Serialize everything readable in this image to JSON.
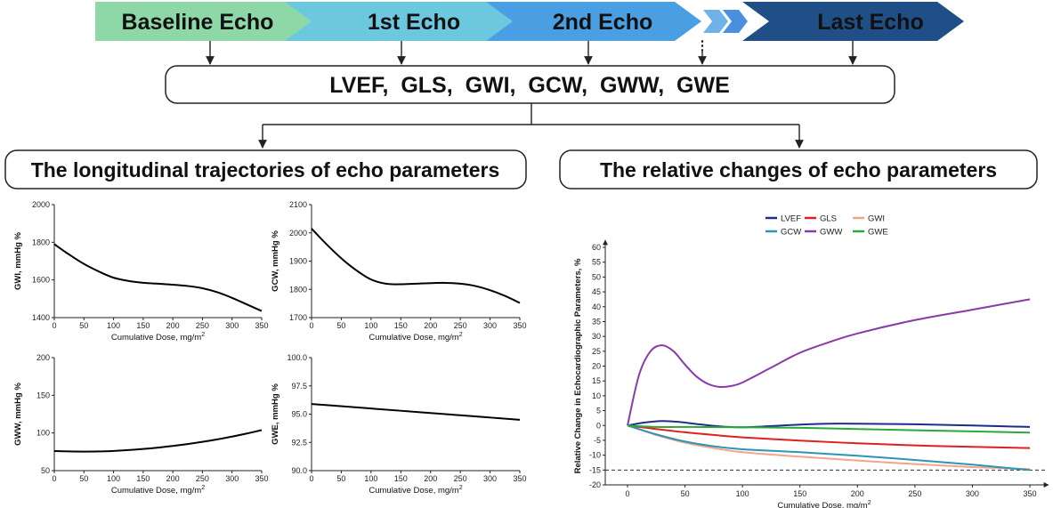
{
  "timeline": {
    "stages": [
      {
        "label": "Baseline Echo",
        "color": "#8ed8a8"
      },
      {
        "label": "1st Echo",
        "color": "#6cc8de"
      },
      {
        "label": "2nd Echo",
        "color": "#4a9fe2"
      },
      {
        "label": "Last Echo",
        "color": "#1f4f86"
      }
    ],
    "ellipsis": "⋮"
  },
  "parameters": {
    "label": "LVEF,  GLS,  GWI,  GCW,  GWW,  GWE"
  },
  "left_section": {
    "title": "The longitudinal trajectories of echo parameters"
  },
  "right_section": {
    "title": "The relative changes of echo parameters"
  },
  "chart_data": [
    {
      "type": "line",
      "xlabel": "Cumulative Dose, mg/m",
      "xlabel_sup": "2",
      "ylabel": "GWI, mmHg %",
      "xlim": [
        0,
        350
      ],
      "ylim": [
        1400,
        2000
      ],
      "xticks": [
        "0",
        "50",
        "100",
        "150",
        "200",
        "250",
        "300",
        "350"
      ],
      "yticks": [
        "1400",
        "1600",
        "1800",
        "2000"
      ],
      "x": [
        0,
        25,
        50,
        75,
        100,
        125,
        150,
        175,
        200,
        225,
        250,
        275,
        300,
        325,
        350
      ],
      "y": [
        1790,
        1735,
        1685,
        1645,
        1612,
        1595,
        1585,
        1580,
        1575,
        1568,
        1556,
        1535,
        1505,
        1470,
        1435
      ]
    },
    {
      "type": "line",
      "xlabel": "Cumulative Dose, mg/m",
      "xlabel_sup": "2",
      "ylabel": "GCW, mmHg %",
      "xlim": [
        0,
        350
      ],
      "ylim": [
        1700,
        2100
      ],
      "xticks": [
        "0",
        "50",
        "100",
        "150",
        "200",
        "250",
        "300",
        "350"
      ],
      "yticks": [
        "1700",
        "1800",
        "1900",
        "2000",
        "2100"
      ],
      "x": [
        0,
        25,
        50,
        75,
        100,
        125,
        150,
        175,
        200,
        225,
        250,
        275,
        300,
        325,
        350
      ],
      "y": [
        2015,
        1960,
        1910,
        1868,
        1835,
        1820,
        1818,
        1820,
        1822,
        1823,
        1820,
        1812,
        1797,
        1777,
        1752
      ]
    },
    {
      "type": "line",
      "xlabel": "Cumulative Dose, mg/m",
      "xlabel_sup": "2",
      "ylabel": "GWW, mmHg %",
      "xlim": [
        0,
        350
      ],
      "ylim": [
        50,
        200
      ],
      "xticks": [
        "0",
        "50",
        "100",
        "150",
        "200",
        "250",
        "300",
        "350"
      ],
      "yticks": [
        "50",
        "100",
        "150",
        "200"
      ],
      "x": [
        0,
        25,
        50,
        75,
        100,
        125,
        150,
        175,
        200,
        225,
        250,
        275,
        300,
        325,
        350
      ],
      "y": [
        76,
        75.5,
        75.3,
        75.5,
        76.2,
        77.3,
        78.8,
        80.6,
        82.8,
        85.3,
        88.2,
        91.5,
        95.2,
        99.3,
        103.8
      ]
    },
    {
      "type": "line",
      "xlabel": "Cumulative Dose, mg/m",
      "xlabel_sup": "2",
      "ylabel": "GWE, mmHg %",
      "xlim": [
        0,
        350
      ],
      "ylim": [
        90.0,
        100.0
      ],
      "xticks": [
        "0",
        "50",
        "100",
        "150",
        "200",
        "250",
        "300",
        "350"
      ],
      "yticks": [
        "90.0",
        "92.5",
        "95.0",
        "97.5",
        "100.0"
      ],
      "x": [
        0,
        50,
        100,
        150,
        200,
        250,
        300,
        350
      ],
      "y": [
        95.9,
        95.7,
        95.5,
        95.3,
        95.1,
        94.9,
        94.7,
        94.5
      ]
    },
    {
      "type": "line",
      "xlabel": "Cumulative Dose, mg/m",
      "xlabel_sup": "2",
      "ylabel": "Relative Change in Echocardiographic Parameters, %",
      "xlim": [
        0,
        350
      ],
      "ylim": [
        -20,
        60
      ],
      "xticks": [
        "0",
        "50",
        "100",
        "150",
        "200",
        "250",
        "300",
        "350"
      ],
      "yticks": [
        "-20",
        "-15",
        "-10",
        "-5",
        "0",
        "5",
        "10",
        "15",
        "20",
        "25",
        "30",
        "35",
        "40",
        "45",
        "50",
        "55",
        "60"
      ],
      "reference_line": -15,
      "series": [
        {
          "name": "LVEF",
          "color": "#1a2f8c",
          "x": [
            0,
            15,
            30,
            45,
            60,
            80,
            100,
            125,
            150,
            175,
            200,
            250,
            300,
            350
          ],
          "y": [
            0,
            1.0,
            1.5,
            1.2,
            0.5,
            -0.3,
            -0.6,
            -0.2,
            0.3,
            0.6,
            0.6,
            0.4,
            0.0,
            -0.5
          ]
        },
        {
          "name": "GLS",
          "color": "#e02020",
          "x": [
            0,
            25,
            50,
            75,
            100,
            150,
            200,
            250,
            300,
            350
          ],
          "y": [
            0,
            -1.2,
            -2.3,
            -3.2,
            -4.0,
            -5.1,
            -6.0,
            -6.7,
            -7.2,
            -7.6
          ]
        },
        {
          "name": "GWI",
          "color": "#f4a488",
          "x": [
            0,
            25,
            50,
            75,
            100,
            150,
            200,
            250,
            300,
            350
          ],
          "y": [
            0,
            -3.2,
            -5.8,
            -7.6,
            -9.0,
            -10.5,
            -11.8,
            -13.0,
            -14.0,
            -14.7
          ]
        },
        {
          "name": "GCW",
          "color": "#2b95b8",
          "x": [
            0,
            25,
            50,
            75,
            100,
            150,
            200,
            250,
            300,
            350
          ],
          "y": [
            0,
            -3.0,
            -5.4,
            -7.0,
            -8.0,
            -9.0,
            -10.2,
            -11.6,
            -13.2,
            -15.0
          ]
        },
        {
          "name": "GWW",
          "color": "#8a3aa8",
          "x": [
            0,
            10,
            20,
            30,
            40,
            50,
            60,
            70,
            80,
            90,
            100,
            125,
            150,
            175,
            200,
            250,
            300,
            350
          ],
          "y": [
            0,
            17.0,
            25.0,
            27.0,
            25.0,
            20.5,
            16.5,
            14.0,
            13.0,
            13.3,
            14.5,
            19.5,
            24.5,
            28.0,
            31.0,
            35.5,
            39.0,
            42.5
          ]
        },
        {
          "name": "GWE",
          "color": "#2aa83a",
          "x": [
            0,
            25,
            50,
            100,
            150,
            200,
            250,
            300,
            350
          ],
          "y": [
            0,
            -0.5,
            -0.5,
            -0.6,
            -0.8,
            -1.2,
            -1.6,
            -2.0,
            -2.4
          ]
        }
      ]
    }
  ]
}
